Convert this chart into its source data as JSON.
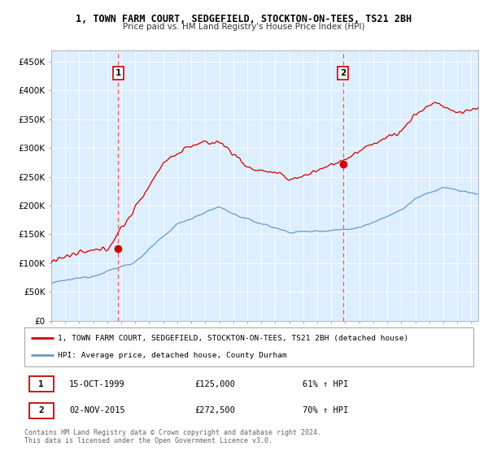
{
  "title1": "1, TOWN FARM COURT, SEDGEFIELD, STOCKTON-ON-TEES, TS21 2BH",
  "title2": "Price paid vs. HM Land Registry's House Price Index (HPI)",
  "ylabel_ticks": [
    "£0",
    "£50K",
    "£100K",
    "£150K",
    "£200K",
    "£250K",
    "£300K",
    "£350K",
    "£400K",
    "£450K"
  ],
  "ytick_values": [
    0,
    50000,
    100000,
    150000,
    200000,
    250000,
    300000,
    350000,
    400000,
    450000
  ],
  "ylim": [
    0,
    470000
  ],
  "xlim_start": 1995.0,
  "xlim_end": 2025.5,
  "sale1_x": 1999.79,
  "sale1_y": 125000,
  "sale2_x": 2015.84,
  "sale2_y": 272500,
  "legend_line1": "1, TOWN FARM COURT, SEDGEFIELD, STOCKTON-ON-TEES, TS21 2BH (detached house)",
  "legend_line2": "HPI: Average price, detached house, County Durham",
  "table_row1": [
    "1",
    "15-OCT-1999",
    "£125,000",
    "61% ↑ HPI"
  ],
  "table_row2": [
    "2",
    "02-NOV-2015",
    "£272,500",
    "70% ↑ HPI"
  ],
  "footer": "Contains HM Land Registry data © Crown copyright and database right 2024.\nThis data is licensed under the Open Government Licence v3.0.",
  "red_color": "#cc0000",
  "blue_color": "#6699cc",
  "chart_bg": "#ddeeff"
}
